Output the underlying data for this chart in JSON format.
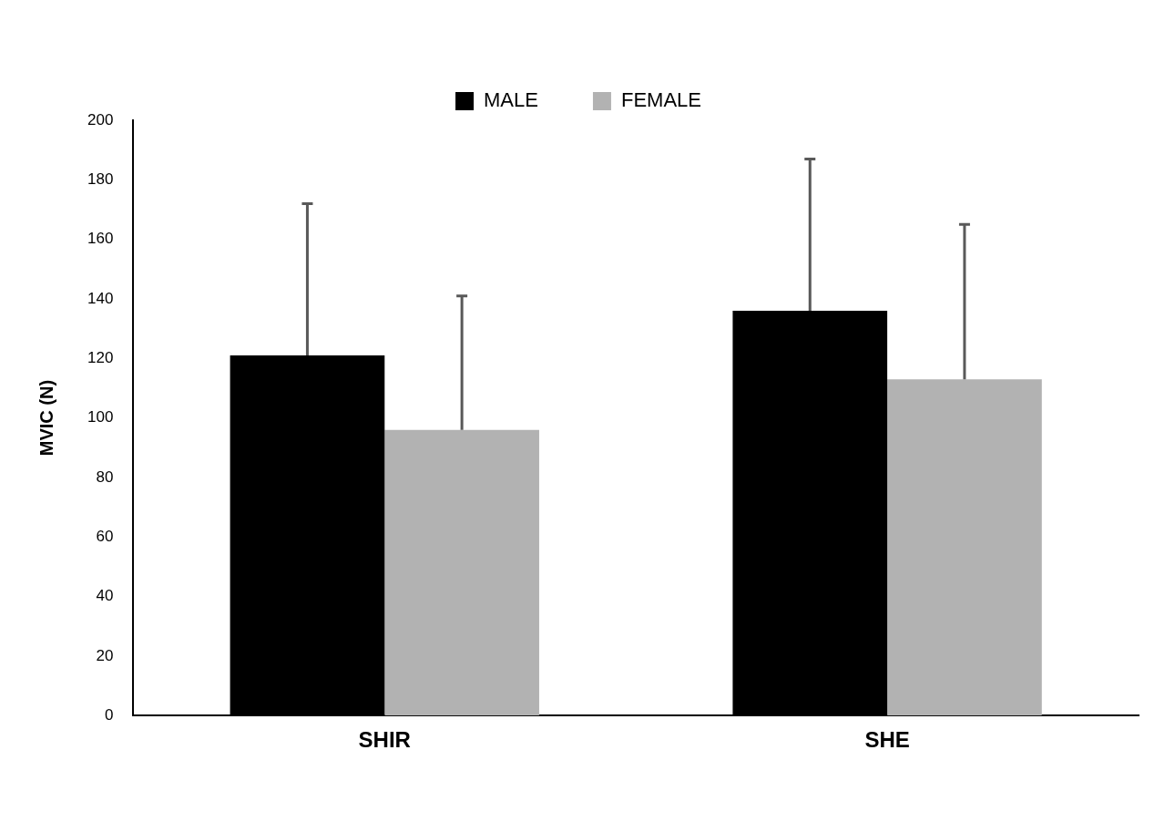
{
  "chart_data": {
    "type": "bar",
    "ylabel": "MVIC (N)",
    "categories": [
      "SHIR",
      "SHE"
    ],
    "series": [
      {
        "name": "MALE",
        "color": "#000000",
        "values": [
          121,
          136
        ],
        "errors": [
          [
            121,
            172
          ],
          [
            136,
            187
          ]
        ]
      },
      {
        "name": "FEMALE",
        "color": "#b2b2b2",
        "values": [
          96,
          113
        ],
        "errors": [
          [
            96,
            141
          ],
          [
            113,
            165
          ]
        ]
      }
    ],
    "ylim": [
      0,
      200
    ],
    "yticks": [
      0,
      20,
      40,
      60,
      80,
      100,
      120,
      140,
      160,
      180,
      200
    ],
    "grid": false,
    "legend": "top"
  }
}
